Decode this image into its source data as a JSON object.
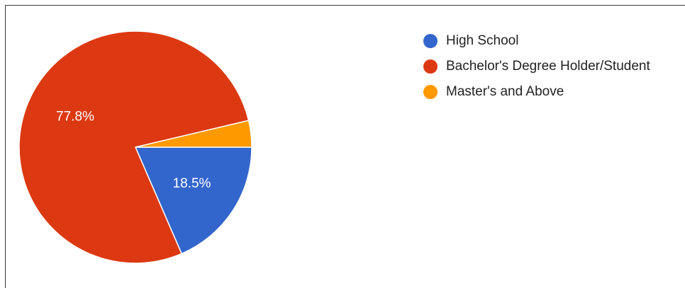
{
  "chart_data": {
    "type": "pie",
    "title": "",
    "legend_position": "right",
    "slices": [
      {
        "label": "High School",
        "value": 18.5,
        "display": "18.5%",
        "color": "#3366cc"
      },
      {
        "label": "Bachelor's Degree Holder/Student",
        "value": 77.8,
        "display": "77.8%",
        "color": "#dc3912"
      },
      {
        "label": "Master's and Above",
        "value": 3.7,
        "display": "",
        "color": "#ff9900"
      }
    ]
  }
}
